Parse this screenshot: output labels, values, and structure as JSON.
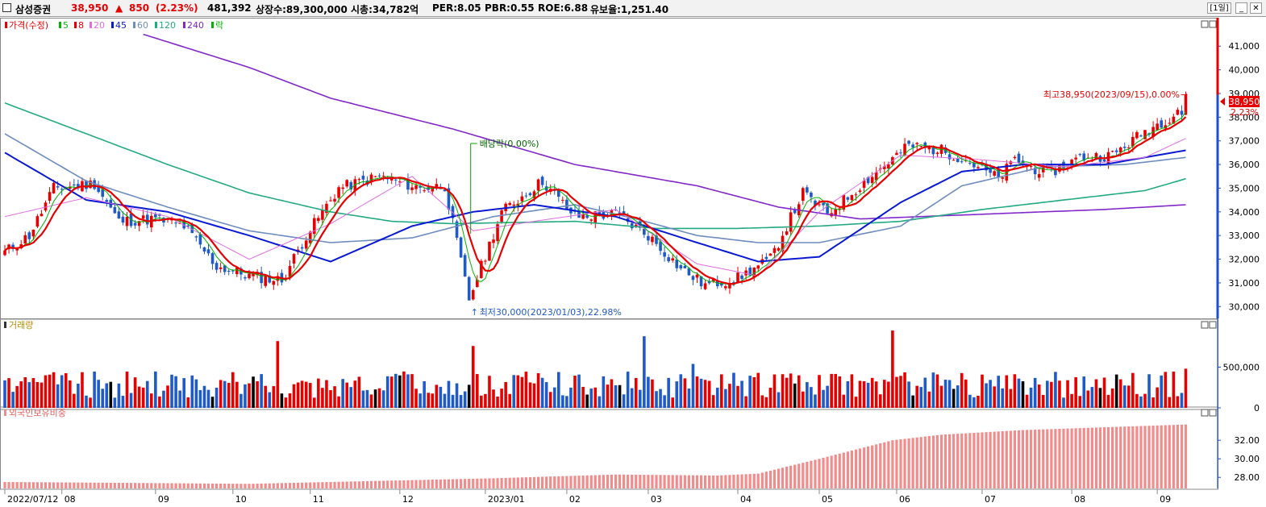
{
  "header": {
    "stock_name": "삼성증권",
    "price": "38,950",
    "change_arrow": "▲",
    "change": "850",
    "change_pct": "(2.23%)",
    "volume": "481,392",
    "listed_shares": "상장수:89,300,000",
    "market_cap": "시총:34,782억",
    "per": "PER:8.05",
    "pbr": "PBR:0.55",
    "roe": "ROE:6.88",
    "float_ratio": "유보율:1,251.40",
    "period_button": "[1일]",
    "minimize_icon": "minimize-icon",
    "close_icon": "close-icon"
  },
  "colors": {
    "up": "#e60000",
    "down": "#1e5ac8",
    "ma5": "#00b400",
    "ma8": "#e60000",
    "ma20": "#e06ee0",
    "ma45": "#0a19d2",
    "ma60": "#6e8cbe",
    "ma120": "#23aa82",
    "ma240": "#8228c8",
    "foreign": "#f08c8c",
    "axis": "#1e50c8"
  },
  "chart_data": [
    {
      "type": "candlestick",
      "legend": [
        {
          "label": "가격(수정)",
          "color": "#e60000"
        },
        {
          "label": "5",
          "color": "#00b400"
        },
        {
          "label": "8",
          "color": "#e60000"
        },
        {
          "label": "20",
          "color": "#e06ee0"
        },
        {
          "label": "45",
          "color": "#0a19d2"
        },
        {
          "label": "60",
          "color": "#6e8cbe"
        },
        {
          "label": "120",
          "color": "#23aa82"
        },
        {
          "label": "240",
          "color": "#8228c8"
        },
        {
          "label": "락",
          "color": "#00b400"
        }
      ],
      "ylim": [
        29500,
        42200
      ],
      "y_ticks": [
        30000,
        31000,
        32000,
        33000,
        34000,
        35000,
        36000,
        37000,
        38000,
        39000,
        40000,
        41000
      ],
      "y_tick_labels": [
        "30,000",
        "31,000",
        "32,000",
        "33,000",
        "34,000",
        "35,000",
        "36,000",
        "37,000",
        "38,000",
        "39,000",
        "40,000",
        "41,000"
      ],
      "close_anchors": [
        [
          0,
          32300
        ],
        [
          6,
          33000
        ],
        [
          12,
          35000
        ],
        [
          22,
          35200
        ],
        [
          28,
          33600
        ],
        [
          37,
          33700
        ],
        [
          44,
          33400
        ],
        [
          52,
          31700
        ],
        [
          60,
          31300
        ],
        [
          68,
          31100
        ],
        [
          74,
          33000
        ],
        [
          82,
          35000
        ],
        [
          92,
          35500
        ],
        [
          102,
          35000
        ],
        [
          108,
          35100
        ],
        [
          114,
          30300
        ],
        [
          122,
          34000
        ],
        [
          132,
          35300
        ],
        [
          140,
          33800
        ],
        [
          150,
          33900
        ],
        [
          158,
          33000
        ],
        [
          166,
          31600
        ],
        [
          172,
          30900
        ],
        [
          180,
          31200
        ],
        [
          188,
          32000
        ],
        [
          196,
          34800
        ],
        [
          202,
          33900
        ],
        [
          212,
          35400
        ],
        [
          222,
          36800
        ],
        [
          230,
          36600
        ],
        [
          236,
          36200
        ],
        [
          244,
          35400
        ],
        [
          248,
          36200
        ],
        [
          256,
          35600
        ],
        [
          264,
          36300
        ],
        [
          272,
          36400
        ],
        [
          280,
          37400
        ],
        [
          287,
          38100
        ],
        [
          290,
          38950
        ]
      ],
      "moving_average_anchors": {
        "ma20": [
          [
            0,
            33800
          ],
          [
            20,
            34600
          ],
          [
            40,
            33800
          ],
          [
            60,
            32000
          ],
          [
            80,
            33500
          ],
          [
            100,
            35500
          ],
          [
            115,
            33200
          ],
          [
            130,
            33600
          ],
          [
            150,
            34100
          ],
          [
            170,
            31800
          ],
          [
            185,
            31300
          ],
          [
            200,
            34000
          ],
          [
            220,
            36400
          ],
          [
            240,
            36200
          ],
          [
            260,
            35900
          ],
          [
            280,
            36300
          ],
          [
            290,
            37100
          ]
        ],
        "ma45": [
          [
            0,
            36500
          ],
          [
            20,
            34500
          ],
          [
            40,
            34000
          ],
          [
            60,
            33000
          ],
          [
            80,
            31900
          ],
          [
            100,
            33400
          ],
          [
            115,
            34000
          ],
          [
            130,
            34300
          ],
          [
            150,
            33800
          ],
          [
            170,
            32700
          ],
          [
            185,
            31900
          ],
          [
            200,
            32100
          ],
          [
            220,
            34400
          ],
          [
            235,
            35700
          ],
          [
            250,
            36000
          ],
          [
            270,
            36000
          ],
          [
            290,
            36600
          ]
        ],
        "ma60": [
          [
            0,
            37300
          ],
          [
            20,
            35300
          ],
          [
            40,
            34200
          ],
          [
            60,
            33200
          ],
          [
            80,
            32700
          ],
          [
            100,
            32900
          ],
          [
            120,
            33800
          ],
          [
            140,
            34300
          ],
          [
            155,
            33700
          ],
          [
            170,
            33000
          ],
          [
            185,
            32700
          ],
          [
            200,
            32700
          ],
          [
            220,
            33400
          ],
          [
            235,
            35100
          ],
          [
            255,
            35900
          ],
          [
            275,
            36000
          ],
          [
            290,
            36300
          ]
        ],
        "ma120": [
          [
            0,
            38600
          ],
          [
            20,
            37300
          ],
          [
            40,
            36000
          ],
          [
            60,
            34800
          ],
          [
            80,
            34000
          ],
          [
            95,
            33600
          ],
          [
            110,
            33500
          ],
          [
            140,
            33600
          ],
          [
            160,
            33300
          ],
          [
            180,
            33300
          ],
          [
            200,
            33400
          ],
          [
            220,
            33600
          ],
          [
            240,
            34100
          ],
          [
            260,
            34500
          ],
          [
            280,
            34900
          ],
          [
            290,
            35400
          ]
        ],
        "ma240": [
          [
            34,
            41500
          ],
          [
            60,
            40100
          ],
          [
            80,
            38800
          ],
          [
            110,
            37500
          ],
          [
            140,
            36000
          ],
          [
            170,
            35100
          ],
          [
            190,
            34200
          ],
          [
            210,
            33700
          ],
          [
            240,
            33900
          ],
          [
            270,
            34100
          ],
          [
            290,
            34300
          ]
        ]
      },
      "annotations": {
        "dividend": "배당락(0.00%)",
        "low": "최저30,000(2023/01/03),22.98%",
        "high": "최고38,950(2023/09/15),0.00%",
        "price_tag": "38,950",
        "pct_tag": "2.23%"
      },
      "x_tick_labels": [
        {
          "i": 0,
          "label": "2022/07/12"
        },
        {
          "i": 14,
          "label": "08"
        },
        {
          "i": 37,
          "label": "09"
        },
        {
          "i": 56,
          "label": "10"
        },
        {
          "i": 75,
          "label": "11"
        },
        {
          "i": 97,
          "label": "12"
        },
        {
          "i": 118,
          "label": "2023/01"
        },
        {
          "i": 138,
          "label": "02"
        },
        {
          "i": 158,
          "label": "03"
        },
        {
          "i": 180,
          "label": "04"
        },
        {
          "i": 200,
          "label": "05"
        },
        {
          "i": 219,
          "label": "06"
        },
        {
          "i": 240,
          "label": "07"
        },
        {
          "i": 262,
          "label": "08"
        },
        {
          "i": 283,
          "label": "09"
        }
      ]
    },
    {
      "type": "bar",
      "title": "거래량",
      "ylim": [
        0,
        1000000
      ],
      "y_ticks": [
        0,
        500000
      ],
      "y_tick_labels": [
        "0",
        "500,000"
      ],
      "spikes": [
        [
          67,
          820000
        ],
        [
          115,
          760000
        ],
        [
          157,
          880000
        ],
        [
          169,
          540000
        ],
        [
          218,
          950000
        ],
        [
          290,
          481392
        ]
      ],
      "base_volume": 250000
    },
    {
      "type": "bar",
      "title": "외국인보유비중",
      "ylim": [
        26.8,
        34.8
      ],
      "y_ticks": [
        28,
        30,
        32
      ],
      "y_tick_labels": [
        "28.00",
        "30.00",
        "32.00"
      ],
      "anchors": [
        [
          0,
          27.5
        ],
        [
          30,
          27.4
        ],
        [
          60,
          27.3
        ],
        [
          90,
          27.6
        ],
        [
          120,
          27.9
        ],
        [
          150,
          28.3
        ],
        [
          175,
          28.2
        ],
        [
          185,
          28.4
        ],
        [
          200,
          30.0
        ],
        [
          218,
          32.0
        ],
        [
          230,
          32.6
        ],
        [
          250,
          33.1
        ],
        [
          270,
          33.4
        ],
        [
          290,
          33.7
        ]
      ]
    }
  ]
}
